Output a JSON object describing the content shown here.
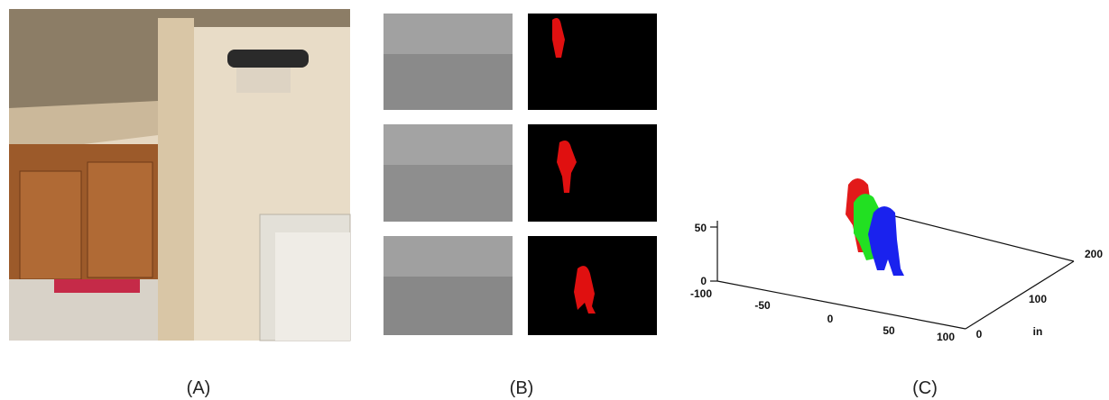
{
  "panels": [
    {
      "label": "(A)"
    },
    {
      "label": "(B)"
    },
    {
      "label": "(C)"
    }
  ],
  "plot": {
    "z_ticks": [
      0,
      50
    ],
    "x_ticks": [
      -100,
      -50,
      0,
      50,
      100
    ],
    "y_ticks": [
      0,
      100,
      200
    ],
    "y_axis_label": "in"
  }
}
